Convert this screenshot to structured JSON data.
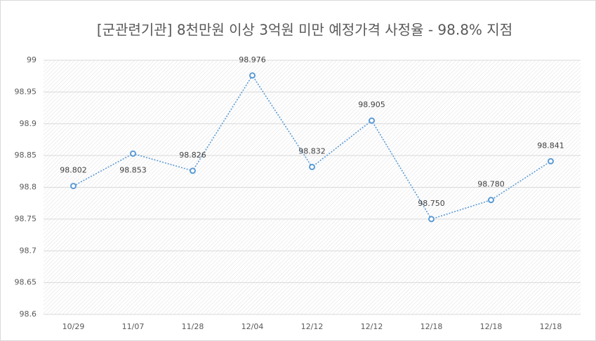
{
  "chart_data": {
    "type": "line",
    "title": "[군관련기관] 8천만원 이상 3억원 미만 예정가격 사정율 - 98.8% 지점",
    "categories": [
      "10/29",
      "11/07",
      "11/28",
      "12/04",
      "12/12",
      "12/12",
      "12/18",
      "12/18",
      "12/18"
    ],
    "values": [
      98.802,
      98.853,
      98.826,
      98.976,
      98.832,
      98.905,
      98.75,
      98.78,
      98.841
    ],
    "value_labels": [
      "98.802",
      "98.853",
      "98.826",
      "98.976",
      "98.832",
      "98.905",
      "98.750",
      "98.780",
      "98.841"
    ],
    "color": "#5b9bd5",
    "ylim": [
      98.6,
      99
    ],
    "yticks": [
      98.6,
      98.65,
      98.7,
      98.75,
      98.8,
      98.85,
      98.9,
      98.95,
      99
    ],
    "grid": true
  }
}
